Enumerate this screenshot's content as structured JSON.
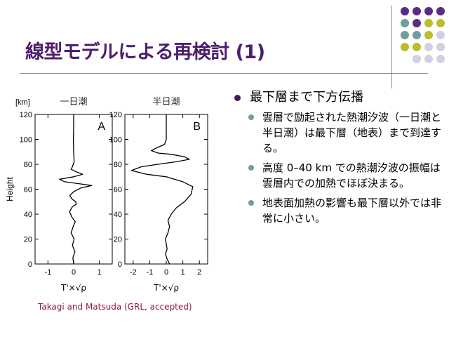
{
  "slide": {
    "title": "線型モデルによる再検討 (1)",
    "citation": "Takagi and Matsuda (GRL, accepted)",
    "decoration_colors": {
      "purple": "#5a2d82",
      "teal": "#6f9e9c",
      "olive": "#b8bf2a",
      "lavender": "#d0d0e4",
      "rule": "#8a8a8a"
    }
  },
  "bullets": {
    "main": "最下層まで下方伝播",
    "sub": [
      "雲層で励起された熱潮汐波（一日潮と半日潮）は最下層（地表）まで到達する。",
      "高度 0–40 km での熱潮汐波の振幅は雲層内での加熱でほぼ決まる。",
      "地表面加熱の影響も最下層以外では非常に小さい。"
    ]
  },
  "chart_data": [
    {
      "type": "line",
      "title": "一日潮",
      "panel_label": "A",
      "xlabel": "T'×√ρ",
      "ylabel": "Height",
      "y_unit": "[km]",
      "xlim": [
        -1.5,
        1.5
      ],
      "ylim": [
        0,
        120
      ],
      "x_ticks": [
        -1,
        0,
        1
      ],
      "y_ticks": [
        0,
        20,
        40,
        60,
        80,
        100,
        120
      ],
      "series": [
        {
          "x": [
            0.0,
            -0.03,
            0.05,
            -0.05,
            0.02,
            -0.1,
            -0.02,
            0.06,
            -0.08,
            -0.16,
            -0.05,
            0.1,
            0.08,
            -0.06,
            -0.15,
            0.0,
            0.28,
            0.7,
            0.35,
            -0.35,
            -0.55,
            0.0,
            0.35,
            0.1,
            -0.1,
            -0.05,
            0.02,
            0.0,
            -0.01,
            0.0,
            0.0,
            0.0
          ],
          "y": [
            0,
            5,
            10,
            15,
            20,
            25,
            30,
            34,
            38,
            42,
            46,
            48,
            50,
            52,
            55,
            58,
            61,
            63,
            64,
            66,
            68,
            70,
            72,
            74,
            76,
            78,
            82,
            90,
            100,
            108,
            115,
            120
          ]
        }
      ]
    },
    {
      "type": "line",
      "title": "半日潮",
      "panel_label": "B",
      "xlabel": "T'×√ρ",
      "ylabel": "",
      "xlim": [
        -2.5,
        2.5
      ],
      "ylim": [
        0,
        120
      ],
      "x_ticks": [
        -2,
        -1,
        0,
        1,
        2
      ],
      "y_ticks": [
        0,
        20,
        40,
        60,
        80,
        100,
        120
      ],
      "series": [
        {
          "x": [
            0.2,
            0.05,
            -0.05,
            0.05,
            0.0,
            -0.05,
            0.1,
            0.2,
            0.1,
            0.3,
            0.6,
            1.1,
            1.5,
            1.6,
            1.0,
            0.0,
            -1.2,
            -2.1,
            -1.5,
            -0.5,
            0.6,
            1.4,
            1.1,
            0.3,
            -0.5,
            -0.9,
            -0.6,
            -0.1,
            0.0,
            0.0,
            0.0
          ],
          "y": [
            0,
            4,
            8,
            12,
            16,
            20,
            25,
            30,
            35,
            40,
            45,
            50,
            56,
            62,
            66,
            70,
            72,
            75,
            78,
            80,
            82,
            84,
            86,
            88,
            89,
            91,
            93,
            96,
            100,
            110,
            120
          ]
        }
      ]
    }
  ]
}
